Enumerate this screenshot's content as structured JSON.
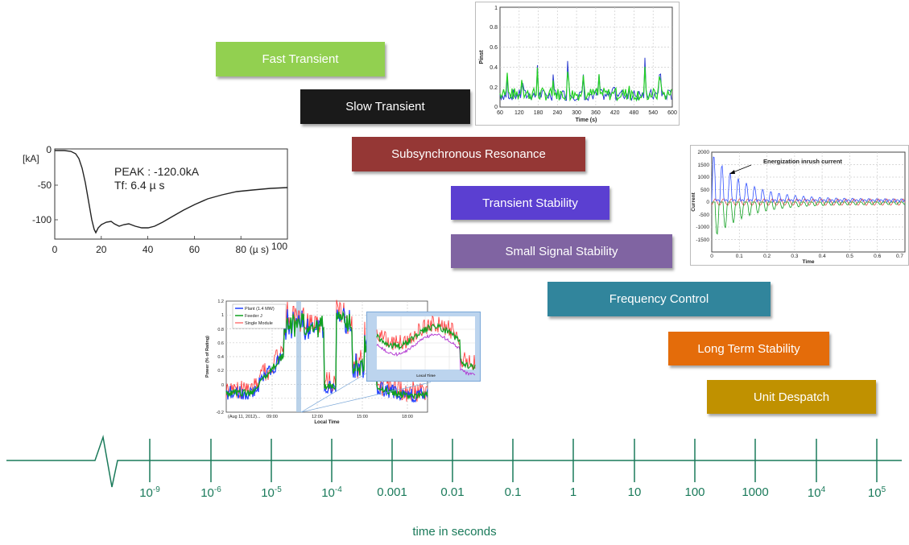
{
  "phenomena": [
    {
      "label": "Fast Transient",
      "color": "#92d050"
    },
    {
      "label": "Slow Transient",
      "color": "#1a1a1a"
    },
    {
      "label": "Subsynchronous Resonance",
      "color": "#953735"
    },
    {
      "label": "Transient Stability",
      "color": "#5b3fd1"
    },
    {
      "label": "Small Signal Stability",
      "color": "#8064a2"
    },
    {
      "label": "Frequency Control",
      "color": "#31859c"
    },
    {
      "label": "Long Term Stability",
      "color": "#e46c0a"
    },
    {
      "label": "Unit Despatch",
      "color": "#c09100"
    }
  ],
  "timeline": {
    "ticks": [
      {
        "base": "10",
        "exp": "-9"
      },
      {
        "base": "10",
        "exp": "-6"
      },
      {
        "base": "10",
        "exp": "-5"
      },
      {
        "base": "10",
        "exp": "-4"
      },
      {
        "base": "0.001",
        "exp": ""
      },
      {
        "base": "0.01",
        "exp": ""
      },
      {
        "base": "0.1",
        "exp": ""
      },
      {
        "base": "1",
        "exp": ""
      },
      {
        "base": "10",
        "exp": ""
      },
      {
        "base": "100",
        "exp": ""
      },
      {
        "base": "1000",
        "exp": ""
      },
      {
        "base": "10",
        "exp": "4"
      },
      {
        "base": "10",
        "exp": "5"
      }
    ],
    "axis_title": "time in seconds"
  },
  "lightning_plot": {
    "y_unit": "[kA]",
    "x_unit": "(µ s)",
    "y_ticks": [
      "0",
      "-50",
      "-100"
    ],
    "x_ticks": [
      "0",
      "20",
      "40",
      "60",
      "80",
      "100"
    ],
    "annotation_peak": "PEAK : -120.0kA",
    "annotation_tf": "Tf: 6.4 µ s"
  },
  "pinst_plot": {
    "ylabel": "Pinst",
    "xlabel": "Time (s)",
    "y_ticks": [
      "0",
      "0.2",
      "0.4",
      "0.6",
      "0.8",
      "1"
    ],
    "x_ticks": [
      "60",
      "120",
      "180",
      "240",
      "300",
      "360",
      "420",
      "480",
      "540",
      "600"
    ]
  },
  "inrush_plot": {
    "ylabel": "Current",
    "xlabel": "Time",
    "annotation": "Energization inrush current",
    "y_ticks": [
      "2000",
      "1500",
      "1000",
      "500",
      "0",
      "-500",
      "-1000",
      "-1500"
    ],
    "x_ticks": [
      "0",
      "0.1",
      "0.2",
      "0.3",
      "0.4",
      "0.5",
      "0.6",
      "0.7"
    ]
  },
  "pv_plot": {
    "ylabel": "Power (% of Rating)",
    "xlabel": "Local Time",
    "legend": [
      "Plant (1.4 MW)",
      "Feeder J",
      "Single Module"
    ],
    "legend_colors": [
      "#1f3fff",
      "#10a020",
      "#ff3030"
    ],
    "y_ticks": [
      "1.2",
      "1",
      "0.8",
      "0.6",
      "0.4",
      "0.2",
      "0",
      "-0.2"
    ],
    "x_ticks": [
      "(Aug 11, 2012)...",
      "09:00",
      "12:00",
      "15:00",
      "18:00"
    ],
    "inset_xlabel": "Local Time"
  }
}
